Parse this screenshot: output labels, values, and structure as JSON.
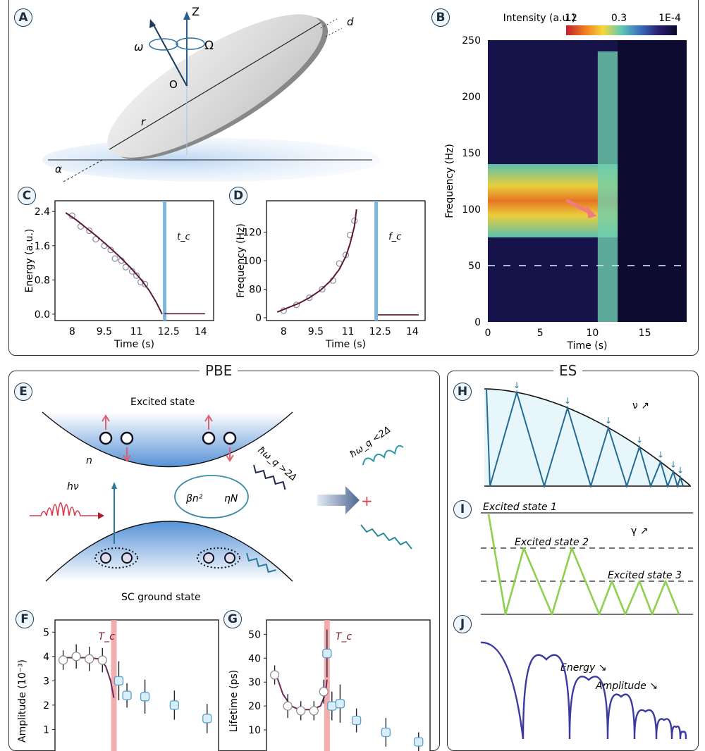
{
  "figure": {
    "sections": {
      "top": "",
      "pbe_title": "PBE",
      "es_title": "ES"
    },
    "panels": {
      "A": {
        "label": "A",
        "symbols": {
          "z": "Z",
          "omega": "ω",
          "Omega": "Ω",
          "origin": "O",
          "radius": "r",
          "thickness": "d",
          "tilt": "α"
        }
      },
      "B": {
        "label": "B"
      },
      "C": {
        "label": "C"
      },
      "D": {
        "label": "D"
      },
      "E": {
        "label": "E",
        "excited_state": "Excited state",
        "ground_state": "SC ground state",
        "n_label": "n",
        "photon": "hν",
        "beta": "βn²",
        "eta": "ηN",
        "emit_high": "ħω_q >2Δ",
        "emit_low": "ħω_q <2Δ",
        "pair_symbol": "e"
      },
      "F": {
        "label": "F"
      },
      "G": {
        "label": "G"
      },
      "H": {
        "label": "H",
        "nu": "ν ↗"
      },
      "I": {
        "label": "I",
        "gamma": "γ ↗",
        "state1": "Excited state 1",
        "state2": "Excited state 2",
        "state3": "Excited state 3"
      },
      "J": {
        "label": "J",
        "energy": "Energy ↘",
        "amplitude": "Amplitude ↘"
      }
    }
  },
  "chart_data": [
    {
      "id": "B",
      "type": "heatmap",
      "xlabel": "Time (s)",
      "ylabel": "Frequency (Hz)",
      "xlim": [
        0,
        19
      ],
      "ylim": [
        0,
        250
      ],
      "xticks": [
        0,
        5,
        10,
        15
      ],
      "yticks": [
        0,
        50,
        100,
        150,
        200,
        250
      ],
      "colorbar": {
        "title": "Intensity (a.u.)",
        "ticks": [
          "12",
          "0.3",
          "1E-4"
        ],
        "colors": [
          "#c0202a",
          "#f07a20",
          "#f5d83a",
          "#5ec9b4",
          "#3a6fc0",
          "#2a1f70",
          "#0a0a2a"
        ]
      },
      "features": [
        {
          "name": "main band",
          "t_range": [
            0,
            12.4
          ],
          "freq_center": 100,
          "freq_width": 50,
          "intensity": "high"
        },
        {
          "name": "vertical band",
          "t_range": [
            10.5,
            12.4
          ],
          "freq_range": [
            0,
            240
          ],
          "intensity": "medium"
        },
        {
          "name": "harmonic line",
          "freq": 50,
          "t_range": [
            0,
            19
          ],
          "intensity": "low"
        }
      ],
      "annotation": "arrow pointing down-right toward ~10 s, ~95 Hz"
    },
    {
      "id": "C",
      "type": "line",
      "xlabel": "Time (s)",
      "ylabel": "Energy (a.u.)",
      "xlim": [
        7.2,
        14.6
      ],
      "ylim": [
        -0.15,
        2.65
      ],
      "xticks": [
        8,
        9.5,
        11,
        12.5,
        14
      ],
      "xtick_labels": [
        "8",
        "9.5",
        "11",
        "12.5",
        "14"
      ],
      "yticks": [
        0,
        0.8,
        1.6,
        2.4
      ],
      "ytick_labels": [
        "0.0",
        "0.8",
        "1.6",
        "2.4"
      ],
      "vline": {
        "x": 12.3,
        "label": "t_c"
      },
      "series": [
        {
          "name": "fit",
          "x": [
            7.7,
            8.2,
            8.7,
            9.2,
            9.7,
            10.2,
            10.7,
            11.2,
            11.6,
            11.9,
            12.1,
            12.2
          ],
          "y": [
            2.37,
            2.2,
            2.0,
            1.8,
            1.58,
            1.35,
            1.1,
            0.82,
            0.55,
            0.3,
            0.1,
            0.0
          ]
        },
        {
          "name": "data",
          "x": [
            8.0,
            8.4,
            8.8,
            9.1,
            9.5,
            9.8,
            10.0,
            10.3,
            10.5,
            10.8,
            11.0,
            11.2,
            11.4
          ],
          "y": [
            2.3,
            2.05,
            1.95,
            1.75,
            1.6,
            1.5,
            1.3,
            1.25,
            1.1,
            1.0,
            0.9,
            0.75,
            0.7
          ]
        },
        {
          "name": "post",
          "x": [
            12.3,
            12.8,
            13.3,
            13.8,
            14.2
          ],
          "y": [
            0.01,
            0.01,
            0.01,
            0.01,
            0.01
          ]
        }
      ]
    },
    {
      "id": "D",
      "type": "line",
      "xlabel": "Time (s)",
      "ylabel": "Frequency (Hz)",
      "xlim": [
        7.2,
        14.6
      ],
      "ylim": [
        58,
        142
      ],
      "xticks": [
        8,
        9.5,
        11,
        12.5,
        14
      ],
      "xtick_labels": [
        "8",
        "9.5",
        "11",
        "12.5",
        "14"
      ],
      "yticks": [
        60,
        80,
        100,
        120
      ],
      "ytick_labels": [
        "0",
        "80",
        "100",
        "120"
      ],
      "vline": {
        "x": 12.3,
        "label": "f_c"
      },
      "series": [
        {
          "name": "fit",
          "x": [
            7.7,
            8.2,
            8.7,
            9.2,
            9.7,
            10.2,
            10.6,
            10.9,
            11.1,
            11.3,
            11.4
          ],
          "y": [
            64,
            67,
            70,
            74,
            79,
            86,
            94,
            103,
            112,
            124,
            136
          ]
        },
        {
          "name": "data",
          "x": [
            8.0,
            8.6,
            9.2,
            9.8,
            10.3,
            10.6,
            10.9,
            11.1,
            11.3
          ],
          "y": [
            65,
            69,
            74,
            80,
            86,
            98,
            104,
            118,
            128
          ]
        },
        {
          "name": "post",
          "x": [
            12.4,
            12.9,
            13.4,
            13.9,
            14.3
          ],
          "y": [
            62,
            62,
            62,
            62,
            62
          ]
        }
      ]
    },
    {
      "id": "F",
      "type": "scatter",
      "xlabel": "",
      "ylabel": "Amplitude (10⁻³)",
      "ylim": [
        0,
        5.5
      ],
      "yticks": [
        1,
        2,
        3,
        4,
        5
      ],
      "vline": {
        "label": "T_c",
        "position": 0.36
      },
      "series": [
        {
          "name": "below",
          "x": [
            0.05,
            0.13,
            0.21,
            0.29
          ],
          "y": [
            3.85,
            4.0,
            3.9,
            3.85
          ],
          "err": [
            0.4,
            0.5,
            0.5,
            0.5
          ]
        },
        {
          "name": "above",
          "x": [
            0.39,
            0.44,
            0.55,
            0.73,
            0.93
          ],
          "y": [
            3.0,
            2.4,
            2.35,
            2.0,
            1.45
          ],
          "err": [
            0.8,
            0.5,
            0.7,
            0.6,
            0.6
          ]
        },
        {
          "name": "fit",
          "x": [
            0.03,
            0.1,
            0.2,
            0.27,
            0.31,
            0.34,
            0.36
          ],
          "y": [
            3.95,
            3.95,
            3.95,
            3.9,
            3.6,
            3.0,
            2.3
          ]
        }
      ]
    },
    {
      "id": "G",
      "type": "scatter",
      "xlabel": "",
      "ylabel": "Lifetime (ps)",
      "ylim": [
        0,
        56
      ],
      "yticks": [
        10,
        20,
        30,
        40,
        50
      ],
      "vline": {
        "label": "T_c",
        "position": 0.37
      },
      "series": [
        {
          "name": "below",
          "x": [
            0.05,
            0.13,
            0.21,
            0.29,
            0.35
          ],
          "y": [
            33,
            20,
            18,
            18,
            26
          ],
          "err": [
            4,
            5,
            4,
            4,
            5
          ]
        },
        {
          "name": "above",
          "x": [
            0.37,
            0.4,
            0.45,
            0.55,
            0.73,
            0.93
          ],
          "y": [
            42,
            20,
            21,
            14,
            9,
            5
          ],
          "err": [
            10,
            6,
            8,
            5,
            6,
            4
          ]
        },
        {
          "name": "fit",
          "x": [
            0.05,
            0.1,
            0.15,
            0.2,
            0.28,
            0.33,
            0.36,
            0.37
          ],
          "y": [
            35,
            25,
            20,
            18.5,
            18.5,
            20,
            25,
            31
          ]
        }
      ]
    }
  ]
}
